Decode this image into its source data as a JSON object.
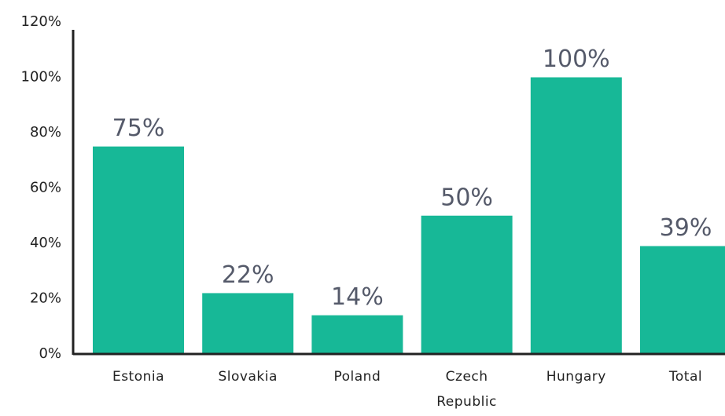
{
  "chart_data": {
    "type": "bar",
    "categories": [
      "Estonia",
      "Slovakia",
      "Poland",
      "Czech Republic",
      "Hungary",
      "Total"
    ],
    "values": [
      75,
      22,
      14,
      50,
      100,
      39
    ],
    "value_labels": [
      "75%",
      "22%",
      "14%",
      "50%",
      "100%",
      "39%"
    ],
    "color": "#17b897",
    "ylim": [
      0,
      120
    ],
    "yticks": [
      {
        "value": 0,
        "label": "0%"
      },
      {
        "value": 20,
        "label": "20%"
      },
      {
        "value": 40,
        "label": "40%"
      },
      {
        "value": 60,
        "label": "60%"
      },
      {
        "value": 80,
        "label": "80%"
      },
      {
        "value": 100,
        "label": "100%"
      },
      {
        "value": 120,
        "label": "120%"
      }
    ],
    "grid": false
  }
}
